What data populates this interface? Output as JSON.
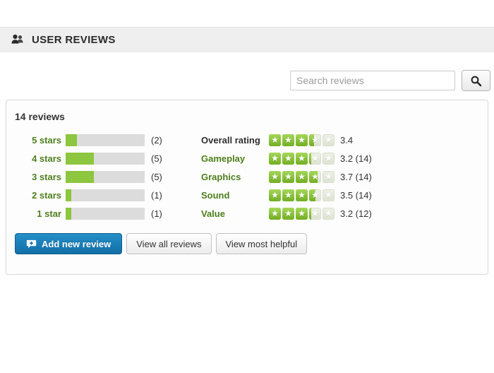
{
  "header": {
    "title": "USER REVIEWS",
    "icon": "users-icon"
  },
  "search": {
    "placeholder": "Search reviews",
    "button_icon": "search-icon"
  },
  "panel": {
    "summary": "14 reviews",
    "total_reviews": 14,
    "distribution": [
      {
        "label": "5 stars",
        "count": 2,
        "count_display": "(2)"
      },
      {
        "label": "4 stars",
        "count": 5,
        "count_display": "(5)"
      },
      {
        "label": "3 stars",
        "count": 5,
        "count_display": "(5)"
      },
      {
        "label": "2 stars",
        "count": 1,
        "count_display": "(1)"
      },
      {
        "label": "1 star",
        "count": 1,
        "count_display": "(1)"
      }
    ],
    "categories": [
      {
        "label": "Overall rating",
        "rating": 3.4,
        "value_display": "3.4",
        "emphasized": true
      },
      {
        "label": "Gameplay",
        "rating": 3.2,
        "value_display": "3.2 (14)",
        "emphasized": false
      },
      {
        "label": "Graphics",
        "rating": 3.7,
        "value_display": "3.7 (14)",
        "emphasized": false
      },
      {
        "label": "Sound",
        "rating": 3.5,
        "value_display": "3.5 (14)",
        "emphasized": false
      },
      {
        "label": "Value",
        "rating": 3.2,
        "value_display": "3.2 (12)",
        "emphasized": false
      }
    ],
    "buttons": [
      {
        "label": "Add new review",
        "style": "primary",
        "icon": "add-review-icon"
      },
      {
        "label": "View all reviews",
        "style": "secondary"
      },
      {
        "label": "View most helpful",
        "style": "secondary"
      }
    ]
  },
  "colors": {
    "accent_green": "#8dc63f",
    "green_text": "#4e7e1c",
    "bar_track": "#dcdcdc",
    "star_empty": "#e6ebdd",
    "primary_button_blue": "#1a7cb7",
    "header_bg": "#efefef",
    "panel_border": "#d8d8d8"
  }
}
